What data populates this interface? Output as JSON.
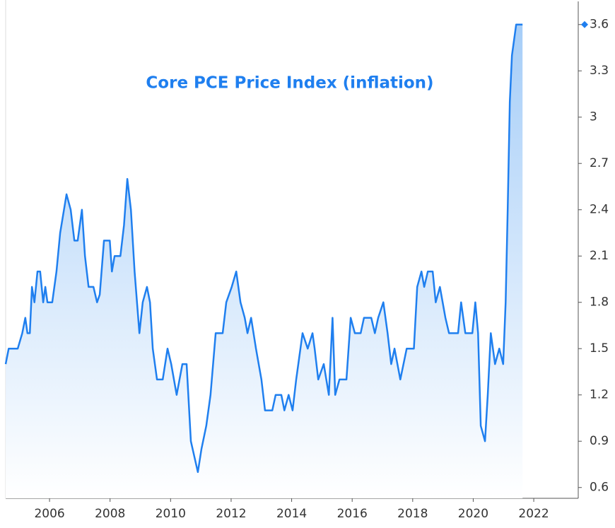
{
  "chart_data": {
    "type": "line",
    "title": "Core PCE Price Index (inflation)",
    "x": [
      2004.55,
      2004.65,
      2004.95,
      2005.1,
      2005.2,
      2005.27,
      2005.35,
      2005.42,
      2005.5,
      2005.6,
      2005.69,
      2005.79,
      2005.86,
      2005.93,
      2006.09,
      2006.23,
      2006.35,
      2006.56,
      2006.7,
      2006.82,
      2006.93,
      2007.07,
      2007.17,
      2007.29,
      2007.45,
      2007.57,
      2007.66,
      2007.8,
      2007.99,
      2008.06,
      2008.15,
      2008.34,
      2008.46,
      2008.57,
      2008.69,
      2008.81,
      2008.97,
      2009.08,
      2009.22,
      2009.32,
      2009.41,
      2009.55,
      2009.74,
      2009.9,
      2010.02,
      2010.2,
      2010.39,
      2010.53,
      2010.67,
      2010.9,
      2011.02,
      2011.18,
      2011.32,
      2011.49,
      2011.72,
      2011.84,
      2012.02,
      2012.17,
      2012.31,
      2012.45,
      2012.54,
      2012.66,
      2012.82,
      2013.0,
      2013.12,
      2013.36,
      2013.47,
      2013.66,
      2013.76,
      2013.9,
      2014.03,
      2014.15,
      2014.36,
      2014.53,
      2014.69,
      2014.76,
      2014.88,
      2015.06,
      2015.23,
      2015.35,
      2015.44,
      2015.58,
      2015.81,
      2015.95,
      2016.09,
      2016.28,
      2016.39,
      2016.63,
      2016.75,
      2016.86,
      2017.03,
      2017.17,
      2017.29,
      2017.4,
      2017.59,
      2017.8,
      2018.04,
      2018.15,
      2018.29,
      2018.38,
      2018.5,
      2018.66,
      2018.76,
      2018.9,
      2019.08,
      2019.2,
      2019.5,
      2019.6,
      2019.74,
      2019.97,
      2020.07,
      2020.16,
      2020.25,
      2020.39,
      2020.48,
      2020.58,
      2020.72,
      2020.86,
      2020.99,
      2021.07,
      2021.14,
      2021.21,
      2021.28,
      2021.42,
      2021.63
    ],
    "series": [
      {
        "name": "Core PCE Price Index (inflation)",
        "color": "#1f7fef",
        "values": [
          1.4,
          1.5,
          1.5,
          1.6,
          1.7,
          1.6,
          1.6,
          1.9,
          1.8,
          2.0,
          2.0,
          1.8,
          1.9,
          1.8,
          1.8,
          2.0,
          2.25,
          2.5,
          2.4,
          2.2,
          2.2,
          2.4,
          2.1,
          1.9,
          1.9,
          1.8,
          1.85,
          2.2,
          2.2,
          2.0,
          2.1,
          2.1,
          2.3,
          2.6,
          2.4,
          2.0,
          1.6,
          1.8,
          1.9,
          1.8,
          1.5,
          1.3,
          1.3,
          1.5,
          1.4,
          1.2,
          1.4,
          1.4,
          0.9,
          0.7,
          0.85,
          1.0,
          1.2,
          1.6,
          1.6,
          1.8,
          1.9,
          2.0,
          1.8,
          1.7,
          1.6,
          1.7,
          1.5,
          1.3,
          1.1,
          1.1,
          1.2,
          1.2,
          1.1,
          1.2,
          1.1,
          1.3,
          1.6,
          1.5,
          1.6,
          1.5,
          1.3,
          1.4,
          1.2,
          1.7,
          1.2,
          1.3,
          1.3,
          1.7,
          1.6,
          1.6,
          1.7,
          1.7,
          1.6,
          1.7,
          1.8,
          1.6,
          1.4,
          1.5,
          1.3,
          1.5,
          1.5,
          1.9,
          2.0,
          1.9,
          2.0,
          2.0,
          1.8,
          1.9,
          1.7,
          1.6,
          1.6,
          1.8,
          1.6,
          1.6,
          1.8,
          1.6,
          1.0,
          0.9,
          1.2,
          1.6,
          1.4,
          1.5,
          1.4,
          1.8,
          2.4,
          3.1,
          3.4,
          3.6,
          3.6
        ]
      }
    ],
    "xlim": [
      2004.55,
      2023.47
    ],
    "xticks": [
      2006,
      2008,
      2010,
      2012,
      2014,
      2016,
      2018,
      2020,
      2022
    ],
    "ylim": [
      0.53,
      3.75
    ],
    "yticks": [
      0.6,
      0.9,
      1.2,
      1.5,
      1.8,
      2.1,
      2.4,
      2.7,
      3,
      3.3,
      3.6
    ],
    "y_axis_side": "right",
    "area_fill": true,
    "last_value_marker": true
  }
}
